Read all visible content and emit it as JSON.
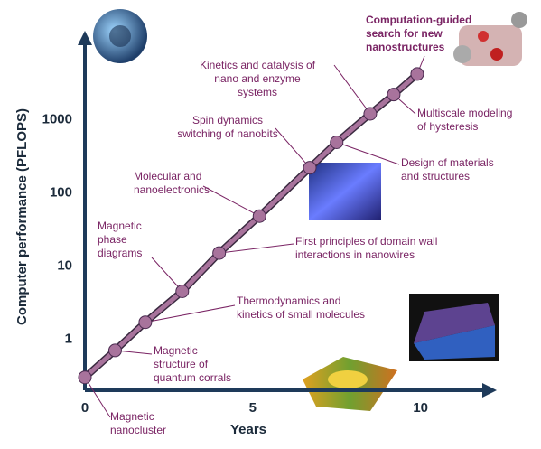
{
  "chart_data": {
    "type": "line",
    "log_y": true,
    "x_label": "Years",
    "y_label": "Computer performance (PFLOPS)",
    "x": [
      0,
      0.9,
      1.8,
      2.9,
      4.0,
      5.2,
      6.7,
      7.5,
      8.5,
      9.2,
      9.9
    ],
    "values": [
      0.3,
      0.7,
      1.7,
      4.5,
      15,
      48,
      220,
      490,
      1200,
      2200,
      4200
    ],
    "color": "#a8739c",
    "xlim": [
      0,
      12
    ],
    "ylim": [
      0.2,
      12000
    ],
    "xticks": [
      0,
      5,
      10
    ],
    "yticks": [
      1,
      10,
      100,
      1000
    ],
    "annotations": [
      [
        "Magnetic",
        "nanocluster"
      ],
      [
        "Magnetic",
        "structure of",
        "quantum corrals"
      ],
      [
        "Thermodynamics and",
        "kinetics of small molecules"
      ],
      [
        "First principles of domain wall",
        "interactions in nanowires"
      ],
      [
        "Magnetic",
        "phase",
        "diagrams"
      ],
      [
        "Molecular and",
        "nanoelectronics"
      ],
      [
        "Spin dynamics",
        "switching of nanobits"
      ],
      [
        "Kinetics and catalysis of",
        "nano and enzyme",
        "systems"
      ],
      [
        "Computation-guided",
        "search for new",
        "nanostructures"
      ],
      [
        "Multiscale modeling",
        "of hysteresis"
      ],
      [
        "Design of materials",
        "and structures"
      ]
    ]
  }
}
